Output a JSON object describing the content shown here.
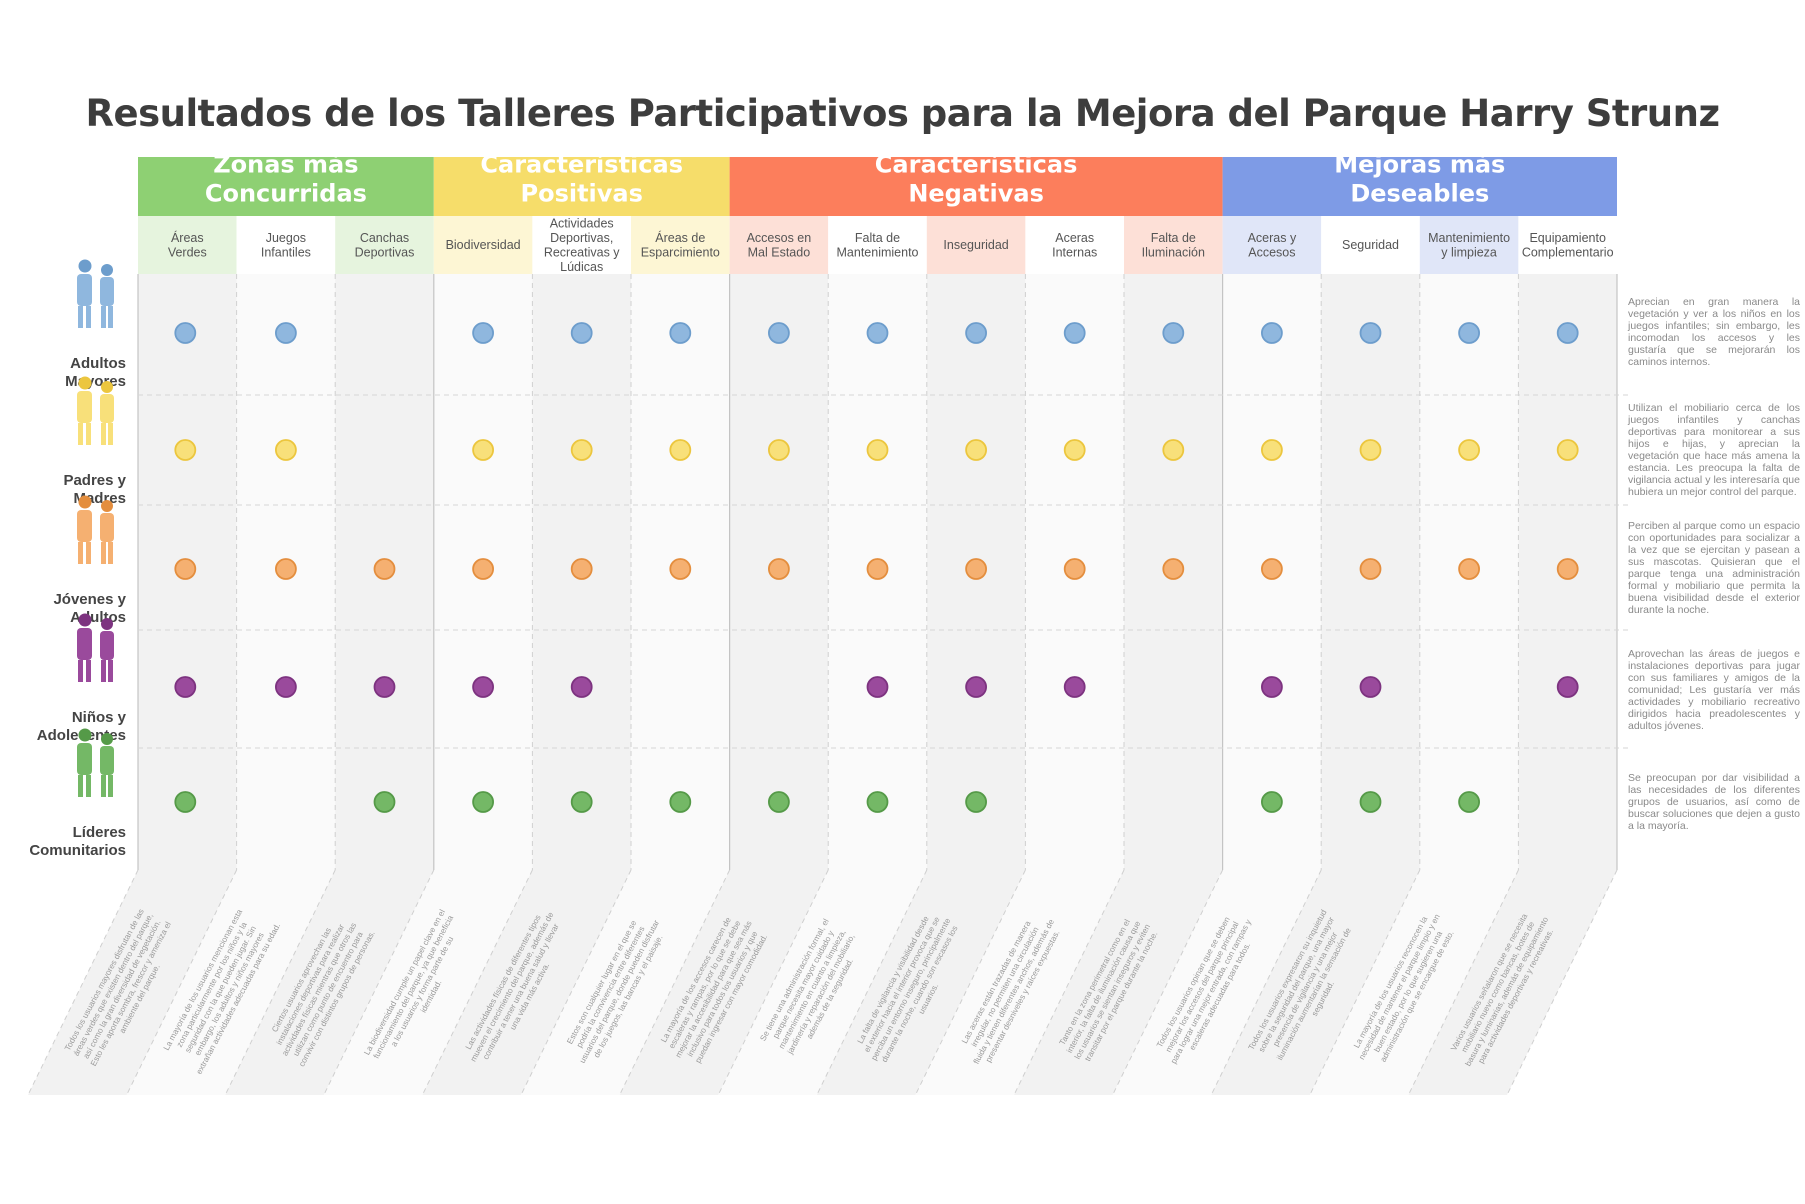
{
  "title": "Resultados de los Talleres Participativos para la Mejora del Parque Harry Strunz",
  "chart_data": {
    "type": "table",
    "groups": [
      {
        "label": [
          "Zonas más",
          "Concurridas"
        ],
        "color": "#8ed073",
        "light": "#e6f4de",
        "columns": [
          0,
          1,
          2
        ]
      },
      {
        "label": [
          "Características",
          "Positivas"
        ],
        "color": "#f6dd6a",
        "light": "#fdf6d4",
        "columns": [
          3,
          4,
          5
        ]
      },
      {
        "label": [
          "Características",
          "Negativas"
        ],
        "color": "#fc7e5c",
        "light": "#fde0d7",
        "columns": [
          6,
          7,
          8,
          9,
          10
        ]
      },
      {
        "label": [
          "Mejoras más",
          "Deseables"
        ],
        "color": "#7e9be6",
        "light": "#e0e6f8",
        "columns": [
          11,
          12,
          13,
          14
        ]
      }
    ],
    "columns": [
      [
        "Áreas",
        "Verdes"
      ],
      [
        "Juegos",
        "Infantiles"
      ],
      [
        "Canchas",
        "Deportivas"
      ],
      [
        "Biodiversidad"
      ],
      [
        "Actividades",
        "Deportivas,",
        "Recreativas y",
        "Lúdicas"
      ],
      [
        "Áreas de",
        "Esparcimiento"
      ],
      [
        "Accesos en",
        "Mal Estado"
      ],
      [
        "Falta de",
        "Mantenimiento"
      ],
      [
        "Inseguridad"
      ],
      [
        "Aceras",
        "Internas"
      ],
      [
        "Falta de",
        "Iluminación"
      ],
      [
        "Aceras  y",
        "Accesos"
      ],
      [
        "Seguridad"
      ],
      [
        "Mantenimiento",
        "y limpieza"
      ],
      [
        "Equipamiento",
        "Complementario"
      ]
    ],
    "rows": [
      {
        "label": [
          "Adultos",
          "Mayores"
        ],
        "color": "#8fb7de",
        "stroke": "#6d9dcc",
        "icon": "elderly-couple-icon",
        "values": [
          1,
          1,
          0,
          1,
          1,
          1,
          1,
          1,
          1,
          1,
          1,
          1,
          1,
          1,
          1
        ],
        "note": "Aprecian en gran manera la vegetación y ver a los niños en los juegos infantiles; sin embargo, les incomodan los accesos y les gustaría que se mejorarán los caminos internos."
      },
      {
        "label": [
          "Padres y",
          "Madres"
        ],
        "color": "#f8e07a",
        "stroke": "#ecc63e",
        "icon": "parent-child-icon",
        "values": [
          1,
          1,
          0,
          1,
          1,
          1,
          1,
          1,
          1,
          1,
          1,
          1,
          1,
          1,
          1
        ],
        "note": "Utilizan el mobiliario cerca de los juegos infantiles y canchas deportivas para monitorear a sus hijos e hijas, y aprecian la vegetación que hace más amena la estancia. Les preocupa la falta de vigilancia actual y les interesaría que hubiera un mejor control del parque."
      },
      {
        "label": [
          "Jóvenes y",
          "Adultos"
        ],
        "color": "#f5b071",
        "stroke": "#e48e3e",
        "icon": "young-adults-icon",
        "values": [
          1,
          1,
          1,
          1,
          1,
          1,
          1,
          1,
          1,
          1,
          1,
          1,
          1,
          1,
          1
        ],
        "note": "Perciben al parque como un espacio con oportunidades para socializar a la vez que se ejercitan y pasean a sus mascotas. Quisieran que el parque tenga una administración formal y mobiliario que permita la buena visibilidad desde el exterior durante la noche."
      },
      {
        "label": [
          "Niños y",
          "Adolecentes"
        ],
        "color": "#9a4a9c",
        "stroke": "#7d3380",
        "icon": "children-icon",
        "values": [
          1,
          1,
          1,
          1,
          1,
          0,
          0,
          1,
          1,
          1,
          0,
          1,
          1,
          0,
          1
        ],
        "note": "Aprovechan las áreas de juegos e instalaciones deportivas para jugar con sus familiares y amigos de la comunidad; Les gustaría ver más actividades y mobiliario recreativo dirigidos hacia preadolescentes y adultos jóvenes."
      },
      {
        "label": [
          "Líderes",
          "Comunitarios"
        ],
        "color": "#74b866",
        "stroke": "#559a48",
        "icon": "community-leaders-icon",
        "values": [
          1,
          0,
          1,
          1,
          1,
          1,
          1,
          1,
          1,
          0,
          0,
          1,
          1,
          1,
          0
        ],
        "note": "Se preocupan por dar visibilidad a las necesidades de los diferentes grupos de usuarios, así como de buscar soluciones que dejen a gusto a la mayoría."
      }
    ],
    "column_notes": [
      "Todos los usuarios mayores disfrutan de las áreas verdes que existen dentro del parque, así como la gran diversidad de vegetación. Esto les aporta sombra, frescor y ameniza el ambiente del parque.",
      "La mayoría de los usuarios mencionan esta zona particularmente por los niños y la seguridad con la que pueden jugar. Sin embargo, los adultos y niños mayores extrañan actividades adecuadas para su edad.",
      "Ciertos usuarios aprovechan las instalaciones deportivas para realizar actividades físicas mientras que otros las utilizan como punto de encuentro para convivir con distintos grupos de personas.",
      "La biodiversidad cumple un papel clave en el funcionamiento del parque, ya que beneficia a los usuarios y forma parte de su identidad.",
      "Las actividades físicas de diferentes tipos mueven el crecimiento del parque, además de contribuir a tener una buena salud y llevar una vida más activa.",
      "Estos son cualquier lugar en el que se podría la convivencia entre diferentes usuarios del parque, donde pueden disfrutar de los juegos, las bancas y el paisaje.",
      "La mayoría de los accesos carecen de escaleras y rampas, por lo que se debe mejorar la accesibilidad para que sea más inclusivo para todos los usuarios y que puedan ingresar con mayor comodidad.",
      "Se tiene una administración formal, el parque necesita mayor cuidado y mantenimiento en cuanto a limpieza, jardinería y reparación del mobiliario, además de la seguridad.",
      "La falta de vigilancia y visibilidad desde el exterior hacia el interior provoca que se perciba un entorno inseguro, principalmente durante la noche, cuando son escasos los usuarios.",
      "Las aceras están trazadas de manera irregular, no permiten una circulación fluida y tienen diferentes anchos, además de presentar desniveles y raíces expuestas.",
      "Tanto en la zona perimetral como en el interior, la falta de iluminación causa que los usuarios se sientan inseguros y eviten transitar por el parque durante la noche.",
      "Todos los usuarios opinan que se deben mejorar los accesos del parque principal para lograr una mejor entrada, con rampas y escaleras adecuadas para todos.",
      "Todos los usuarios expresaron su inquietud sobre la seguridad del parque, una mayor presencia de vigilancia y una mejor iluminación aumentarían la sensación de seguridad.",
      "La mayoría de los usuarios reconocen la necesidad de mantener el parque limpio y en buen estado, por lo que sugieren una administración que se encargue de esto.",
      "Varios usuarios señalaron que se necesita mobiliario nuevo como bancas, botes de basura y luminarias, además de equipamiento para actividades deportivas y recreativas."
    ]
  }
}
